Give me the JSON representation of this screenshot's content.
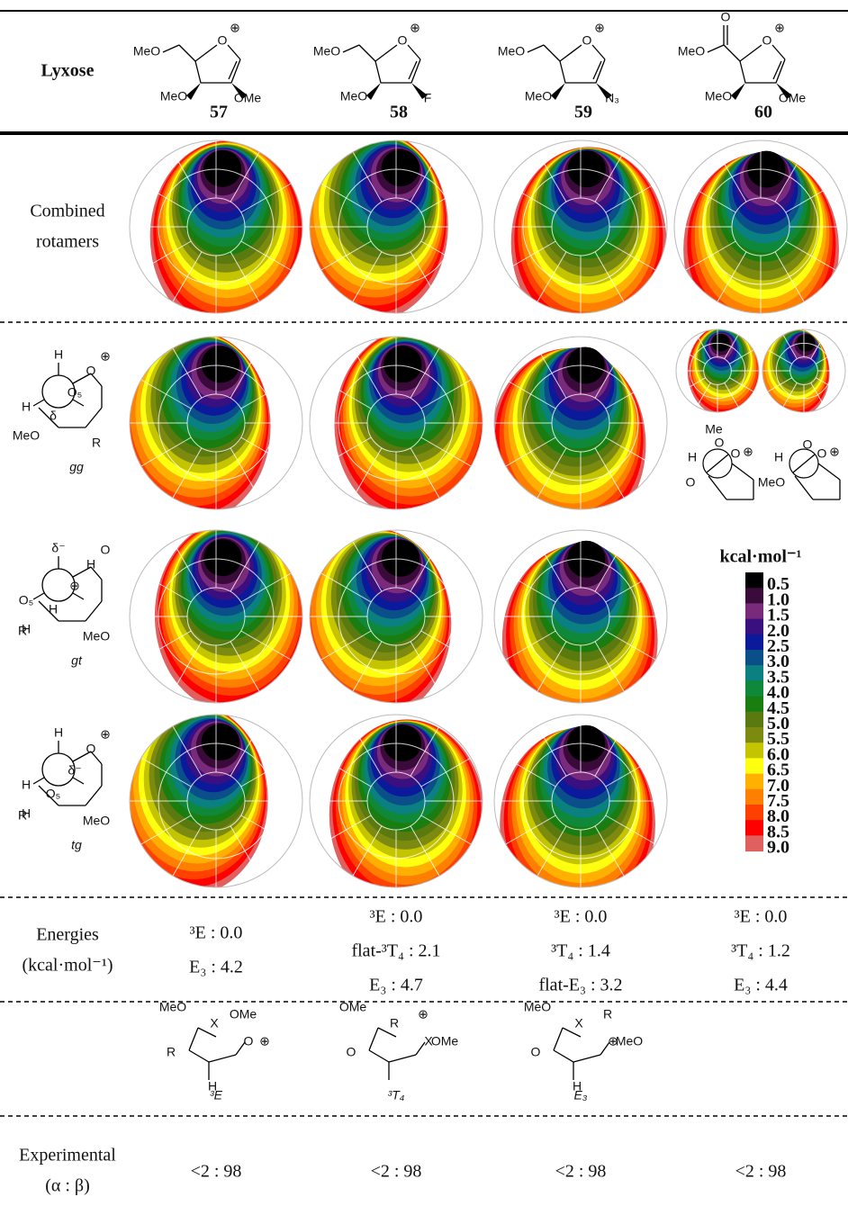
{
  "header": {
    "title": "Lyxose",
    "compounds": [
      {
        "id": "57",
        "top_left": "MeO",
        "ring_o": "O",
        "charge": "⊕",
        "bottom_left": "MeO",
        "bottom_right": "OMe"
      },
      {
        "id": "58",
        "top_left": "MeO",
        "ring_o": "O",
        "charge": "⊕",
        "bottom_left": "MeO",
        "bottom_right": "F"
      },
      {
        "id": "59",
        "top_left": "MeO",
        "ring_o": "O",
        "charge": "⊕",
        "bottom_left": "MeO",
        "bottom_right": "N₃"
      },
      {
        "id": "60",
        "top_left": "MeO",
        "ring_o": "O",
        "charge": "⊕",
        "bottom_left": "MeO",
        "bottom_right": "OMe",
        "carbonyl": "O"
      }
    ]
  },
  "rows": {
    "combined": {
      "label": [
        "Combined",
        "rotamers"
      ]
    },
    "gg": {
      "name": "gg",
      "labels": [
        "H",
        "H",
        "O",
        "⊕",
        "O₅",
        "δ",
        "MeO",
        "R"
      ]
    },
    "gt": {
      "name": "gt",
      "labels": [
        "δ⁻",
        "O₅",
        "H",
        "O",
        "⊕",
        "H",
        "H",
        "MeO",
        "R"
      ]
    },
    "tg": {
      "name": "tg",
      "labels": [
        "H",
        "H",
        "O",
        "⊕",
        "δ⁻",
        "O₅",
        "H",
        "MeO",
        "R"
      ]
    },
    "insets": [
      {
        "labels": [
          "Me",
          "O",
          "H",
          "O",
          "⊕",
          "O"
        ]
      },
      {
        "labels": [
          "O",
          "H",
          "O",
          "⊕",
          "MeO"
        ]
      }
    ]
  },
  "colorbar": {
    "title": "kcal·mol⁻¹",
    "ticks": [
      "0.5",
      "1.0",
      "1.5",
      "2.0",
      "2.5",
      "3.0",
      "3.5",
      "4.0",
      "4.5",
      "5.0",
      "5.5",
      "6.0",
      "6.5",
      "7.0",
      "7.5",
      "8.0",
      "8.5",
      "9.0"
    ],
    "colors": [
      "#000000",
      "#3a0a3a",
      "#7a2a7a",
      "#3a0f80",
      "#0a1a9a",
      "#0b4f8a",
      "#0a8080",
      "#10883a",
      "#1a7d10",
      "#5a7a10",
      "#7d8a10",
      "#c4c400",
      "#ffff10",
      "#ffb000",
      "#ff8000",
      "#ff4000",
      "#ff0000",
      "#e06060"
    ]
  },
  "energies": {
    "label": [
      "Energies",
      "(kcal·mol⁻¹)"
    ],
    "columns": [
      [
        "³E : 0.0",
        "E₃ : 4.2"
      ],
      [
        "³E : 0.0",
        "flat-³T₄ : 2.1",
        "E₃ : 4.7"
      ],
      [
        "³E : 0.0",
        "³T₄ : 1.4",
        "flat-E₃ : 3.2"
      ],
      [
        "³E : 0.0",
        "³T₄ : 1.2",
        "E₃ : 4.4"
      ]
    ]
  },
  "conformers": [
    {
      "name": "³E",
      "labels": [
        "MeO",
        "X",
        "OMe",
        "R",
        "O",
        "⊕",
        "H"
      ]
    },
    {
      "name": "³T₄",
      "labels": [
        "OMe",
        "R",
        "⊕",
        "O",
        "X",
        "OMe"
      ]
    },
    {
      "name": "E₃",
      "labels": [
        "MeO",
        "X",
        "R",
        "O",
        "⊕",
        "MeO",
        "H"
      ]
    }
  ],
  "experimental": {
    "label": [
      "Experimental",
      "(α : β)"
    ],
    "values": [
      "<2 : 98",
      "<2 : 98",
      "<2 : 98",
      "<2 : 98"
    ]
  }
}
